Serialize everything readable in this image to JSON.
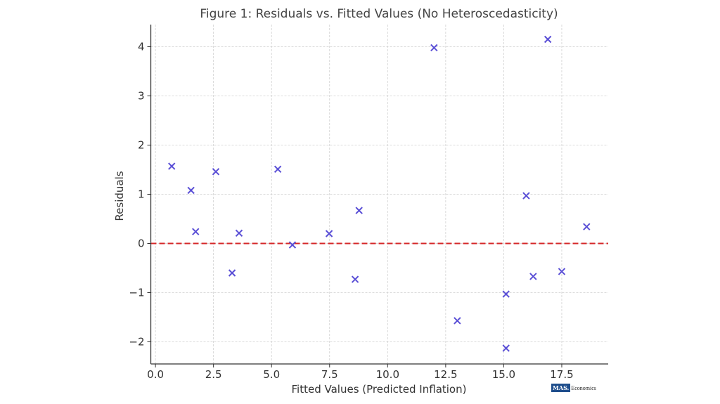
{
  "chart_data": {
    "type": "scatter",
    "title": "Figure 1: Residuals vs. Fitted Values (No Heteroscedasticity)",
    "xlabel": "Fitted Values (Predicted Inflation)",
    "ylabel": "Residuals",
    "xlim": [
      -0.2,
      19.5
    ],
    "ylim": [
      -2.45,
      4.45
    ],
    "xticks": [
      0,
      2.5,
      5,
      7.5,
      10,
      12.5,
      15,
      17.5
    ],
    "xtick_labels": [
      "0.0",
      "2.5",
      "5.0",
      "7.5",
      "10.0",
      "12.5",
      "15.0",
      "17.5"
    ],
    "yticks": [
      -2,
      -1,
      0,
      1,
      2,
      3,
      4
    ],
    "ytick_labels": [
      "−2",
      "−1",
      "0",
      "1",
      "2",
      "3",
      "4"
    ],
    "grid": true,
    "marker": "x",
    "marker_color": "#5a4fd6",
    "reference_line": {
      "y": 0,
      "style": "dashed",
      "color": "#d62728"
    },
    "points": [
      {
        "x": 0.7,
        "y": 1.57
      },
      {
        "x": 1.53,
        "y": 1.08
      },
      {
        "x": 1.73,
        "y": 0.24
      },
      {
        "x": 2.6,
        "y": 1.46
      },
      {
        "x": 3.3,
        "y": -0.6
      },
      {
        "x": 3.6,
        "y": 0.21
      },
      {
        "x": 5.27,
        "y": 1.51
      },
      {
        "x": 5.9,
        "y": -0.03
      },
      {
        "x": 7.48,
        "y": 0.2
      },
      {
        "x": 8.6,
        "y": -0.73
      },
      {
        "x": 8.77,
        "y": 0.67
      },
      {
        "x": 12.0,
        "y": 3.98
      },
      {
        "x": 13.0,
        "y": -1.57
      },
      {
        "x": 15.1,
        "y": -1.03
      },
      {
        "x": 15.1,
        "y": -2.13
      },
      {
        "x": 15.97,
        "y": 0.97
      },
      {
        "x": 16.27,
        "y": -0.67
      },
      {
        "x": 16.9,
        "y": 4.15
      },
      {
        "x": 17.5,
        "y": -0.57
      },
      {
        "x": 18.57,
        "y": 0.34
      }
    ]
  },
  "watermark": {
    "box_text": "MAS.",
    "text": "Economics"
  }
}
